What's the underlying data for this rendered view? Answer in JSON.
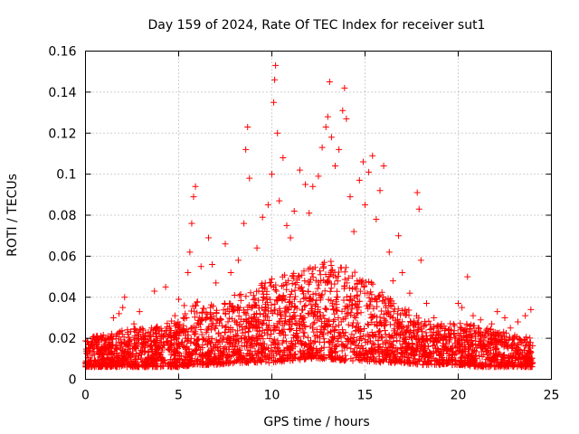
{
  "chart_data": {
    "type": "scatter",
    "title": "Day 159 of 2024, Rate Of TEC Index for receiver sut1",
    "xlabel": "GPS time / hours",
    "ylabel": "ROTI / TECUs",
    "xlim": [
      0,
      25
    ],
    "ylim": [
      0,
      0.16
    ],
    "x_ticks": [
      0,
      5,
      10,
      15,
      20,
      25
    ],
    "x_tick_labels": [
      "0",
      "5",
      "10",
      "15",
      "20",
      "25"
    ],
    "y_ticks": [
      0,
      0.02,
      0.04,
      0.06,
      0.08,
      0.1,
      0.12,
      0.14,
      0.16
    ],
    "y_tick_labels": [
      "0",
      "0.02",
      "0.04",
      "0.06",
      "0.08",
      "0.1",
      "0.12",
      "0.14",
      "0.16"
    ],
    "grid": true,
    "marker": "plus",
    "series_color": "#ff0000",
    "series": [
      {
        "name": "ROTI",
        "points": [
          [
            0.2,
            0.014
          ],
          [
            0.5,
            0.019
          ],
          [
            0.9,
            0.012
          ],
          [
            1.2,
            0.021
          ],
          [
            1.5,
            0.03
          ],
          [
            1.8,
            0.032
          ],
          [
            2.0,
            0.035
          ],
          [
            2.1,
            0.04
          ],
          [
            2.6,
            0.027
          ],
          [
            2.9,
            0.033
          ],
          [
            3.1,
            0.024
          ],
          [
            3.7,
            0.043
          ],
          [
            4.3,
            0.045
          ],
          [
            4.8,
            0.031
          ],
          [
            5.0,
            0.039
          ],
          [
            5.3,
            0.036
          ],
          [
            5.5,
            0.052
          ],
          [
            5.6,
            0.062
          ],
          [
            5.7,
            0.076
          ],
          [
            5.8,
            0.089
          ],
          [
            5.9,
            0.094
          ],
          [
            6.2,
            0.055
          ],
          [
            6.6,
            0.069
          ],
          [
            6.8,
            0.056
          ],
          [
            7.0,
            0.047
          ],
          [
            7.5,
            0.066
          ],
          [
            7.8,
            0.052
          ],
          [
            8.0,
            0.041
          ],
          [
            8.2,
            0.058
          ],
          [
            8.5,
            0.076
          ],
          [
            8.6,
            0.112
          ],
          [
            8.7,
            0.123
          ],
          [
            8.8,
            0.098
          ],
          [
            9.2,
            0.064
          ],
          [
            9.5,
            0.079
          ],
          [
            9.8,
            0.085
          ],
          [
            10.0,
            0.1
          ],
          [
            10.1,
            0.135
          ],
          [
            10.15,
            0.146
          ],
          [
            10.2,
            0.153
          ],
          [
            10.3,
            0.12
          ],
          [
            10.4,
            0.087
          ],
          [
            10.6,
            0.108
          ],
          [
            10.8,
            0.075
          ],
          [
            11.0,
            0.069
          ],
          [
            11.2,
            0.082
          ],
          [
            11.5,
            0.102
          ],
          [
            11.8,
            0.095
          ],
          [
            12.0,
            0.081
          ],
          [
            12.2,
            0.094
          ],
          [
            12.5,
            0.099
          ],
          [
            12.7,
            0.113
          ],
          [
            12.9,
            0.123
          ],
          [
            13.0,
            0.128
          ],
          [
            13.1,
            0.145
          ],
          [
            13.2,
            0.118
          ],
          [
            13.4,
            0.104
          ],
          [
            13.6,
            0.112
          ],
          [
            13.8,
            0.131
          ],
          [
            13.9,
            0.142
          ],
          [
            14.0,
            0.127
          ],
          [
            14.2,
            0.089
          ],
          [
            14.4,
            0.072
          ],
          [
            14.7,
            0.097
          ],
          [
            14.9,
            0.106
          ],
          [
            15.0,
            0.085
          ],
          [
            15.2,
            0.101
          ],
          [
            15.4,
            0.109
          ],
          [
            15.6,
            0.078
          ],
          [
            15.8,
            0.092
          ],
          [
            16.0,
            0.104
          ],
          [
            16.3,
            0.062
          ],
          [
            16.5,
            0.048
          ],
          [
            16.8,
            0.07
          ],
          [
            17.0,
            0.052
          ],
          [
            17.4,
            0.042
          ],
          [
            17.8,
            0.091
          ],
          [
            17.9,
            0.083
          ],
          [
            18.0,
            0.058
          ],
          [
            18.3,
            0.037
          ],
          [
            18.7,
            0.03
          ],
          [
            19.1,
            0.027
          ],
          [
            19.6,
            0.024
          ],
          [
            20.0,
            0.037
          ],
          [
            20.2,
            0.035
          ],
          [
            20.5,
            0.05
          ],
          [
            20.8,
            0.031
          ],
          [
            21.2,
            0.029
          ],
          [
            21.5,
            0.024
          ],
          [
            21.8,
            0.027
          ],
          [
            22.1,
            0.033
          ],
          [
            22.5,
            0.03
          ],
          [
            22.8,
            0.025
          ],
          [
            23.2,
            0.028
          ],
          [
            23.6,
            0.031
          ],
          [
            23.9,
            0.034
          ]
        ]
      }
    ],
    "background_band": {
      "description": "dense band of ROTI points between the listed lower and upper envelopes",
      "x": [
        0,
        1,
        2,
        3,
        4,
        5,
        6,
        7,
        8,
        9,
        10,
        11,
        12,
        13,
        14,
        15,
        16,
        17,
        18,
        19,
        20,
        21,
        22,
        23,
        24
      ],
      "lower": [
        0.006,
        0.006,
        0.006,
        0.006,
        0.006,
        0.006,
        0.007,
        0.007,
        0.008,
        0.008,
        0.008,
        0.009,
        0.01,
        0.01,
        0.009,
        0.009,
        0.008,
        0.008,
        0.007,
        0.007,
        0.007,
        0.006,
        0.006,
        0.006,
        0.006
      ],
      "upper": [
        0.02,
        0.022,
        0.024,
        0.025,
        0.026,
        0.03,
        0.038,
        0.036,
        0.04,
        0.045,
        0.05,
        0.052,
        0.055,
        0.058,
        0.055,
        0.05,
        0.042,
        0.036,
        0.03,
        0.026,
        0.028,
        0.026,
        0.024,
        0.022,
        0.02
      ]
    }
  }
}
